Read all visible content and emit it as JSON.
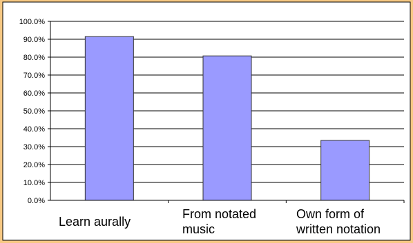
{
  "chart_data": {
    "type": "bar",
    "title": "",
    "xlabel": "",
    "ylabel": "",
    "ylim": [
      0,
      100
    ],
    "yticks": [
      "0.0%",
      "10.0%",
      "20.0%",
      "30.0%",
      "40.0%",
      "50.0%",
      "60.0%",
      "70.0%",
      "80.0%",
      "90.0%",
      "100.0%"
    ],
    "grid": true,
    "legend": "none",
    "categories": [
      [
        "Learn aurally"
      ],
      [
        "From notated",
        "music"
      ],
      [
        "Own form of",
        "written notation"
      ]
    ],
    "values": [
      91.5,
      80.7,
      33.5
    ],
    "colors": {
      "frame_outer": "#f6c883",
      "frame_border": "#000000",
      "plot_bg": "#ffffff",
      "bar_fill": "#9a9aff",
      "bar_stroke": "#333333",
      "grid": "#000000",
      "text": "#000000"
    }
  }
}
